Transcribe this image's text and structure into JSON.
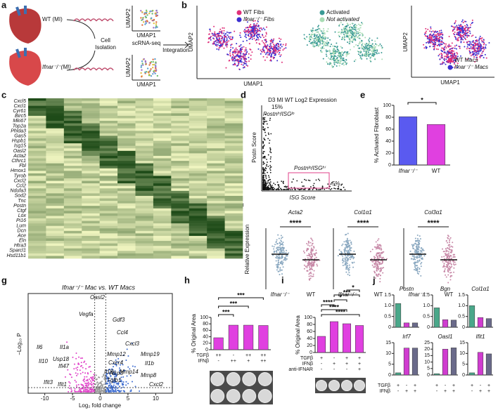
{
  "letters": [
    "a",
    "b",
    "c",
    "d",
    "e",
    "f",
    "g",
    "h",
    "i",
    "j"
  ],
  "schematic": {
    "wt": "WT (MI)",
    "ko": "Ifnar⁻/⁻(MI)",
    "isolation": [
      "Cell",
      "Isolation"
    ],
    "scrna": "scRNA-seq",
    "integration": "Integration",
    "umap1": "UMAP1",
    "umap2": "UMAP2"
  },
  "umap": {
    "x": "UMAP1",
    "y": "UMAP2",
    "fibs_legend": [
      {
        "name": "WT Fibs",
        "color": "#e0307a"
      },
      {
        "name": "Ifnar⁻/⁻ Fibs",
        "color": "#3a2fd0"
      }
    ],
    "act_legend": [
      {
        "name": "Activated",
        "color": "#3a9a95"
      },
      {
        "name": "Not activated",
        "color": "#a8dcb4"
      }
    ],
    "macs_legend": [
      {
        "name": "WT Macs",
        "color": "#e0307a"
      },
      {
        "name": "Ifnar⁻/⁻ Macs",
        "color": "#3a2fd0"
      }
    ]
  },
  "heatmap": {
    "genes": [
      "Cxcl5",
      "Cxcl1",
      "Cyr61",
      "Birc5",
      "Mki67",
      "Top2a",
      "Phlda3",
      "Gas5",
      "Hspb1",
      "Isg15",
      "Oasl2",
      "Acta2",
      "Cthrc1",
      "Fbl",
      "Hmox1",
      "Tyrob",
      "Cxcl2",
      "Ccl2",
      "Ndufa3",
      "Sod2",
      "Tnc",
      "Postn",
      "Ctgf",
      "Lox",
      "Pi16",
      "Lum",
      "Dcn",
      "Ace",
      "Eln",
      "Htra3",
      "Sparcl1",
      "Hsd11b1"
    ]
  },
  "scatter_d": {
    "title": "D3 MI WT Log2 Expression",
    "xlabel": "ISG Score",
    "ylabel": "Postn Score",
    "pct_hi": "15%",
    "pct_lo": "5%",
    "label_hi": "Postnʰⁱ/ISGˡᵒ",
    "label_lo": "Postnˡᵒ/ISGʰⁱ"
  },
  "swarm_f": {
    "ylabel": "Relative Expression",
    "genes": [
      "Acta2",
      "Col1α1",
      "Col3α1"
    ],
    "categories": [
      "Ifnar⁻/⁻",
      "WT"
    ],
    "sig": "****"
  },
  "volcano_g": {
    "title": "Ifnar⁻/⁻ Mac vs. WT Macs",
    "xlabel": "Log₂ fold change",
    "ylabel": "−Log₁₀ P",
    "xlim": [
      -13,
      13
    ],
    "xticks": [
      -10,
      -5,
      0,
      5,
      10
    ],
    "genes": [
      "Vegfa",
      "Oasl2",
      "Il6",
      "Il1a",
      "Il10",
      "Usp18",
      "Ifi47",
      "Ifit3",
      "Ifit1",
      "Gdf3",
      "Ccl4",
      "Cxcl3",
      "Mmp12",
      "Cxcr4",
      "Il18",
      "Nlrp3",
      "Mmp14",
      "Tgfb1",
      "Mmp19",
      "Il1b",
      "Mmp8",
      "Cxcl2"
    ]
  },
  "chart_data": [
    {
      "type": "bar",
      "categories": [
        "Ifnar⁻/⁻",
        "WT"
      ],
      "values": [
        81,
        68
      ],
      "colors": [
        "#5a5af0",
        "#e040e0"
      ],
      "ylim": [
        0,
        100
      ],
      "yticks": [
        0,
        20,
        40,
        60,
        80,
        100
      ],
      "ylabel": "% Activated Fibroblast",
      "annotations": [
        "*"
      ]
    },
    {
      "type": "bar",
      "values": [
        37,
        76,
        76,
        75
      ],
      "color": "#e040e0",
      "ylim": [
        0,
        100
      ],
      "yticks": [
        0,
        20,
        40,
        60,
        80,
        100
      ],
      "ylabel": "% Original Area",
      "annotations": [
        "***",
        "***",
        "***"
      ],
      "treatments": [
        {
          "name": "TGFβ",
          "levels": [
            "++",
            "-",
            "++",
            "++"
          ]
        },
        {
          "name": "IFNβ",
          "levels": [
            "-",
            "++",
            "+",
            "++"
          ]
        }
      ]
    },
    {
      "type": "bar",
      "values": [
        46,
        88,
        82,
        77
      ],
      "color": "#e040e0",
      "ylim": [
        0,
        100
      ],
      "yticks": [
        0,
        20,
        40,
        60,
        80,
        100
      ],
      "ylabel": "% Original Area",
      "annotations": [
        "****",
        "****",
        "****",
        "*",
        "***",
        "*"
      ],
      "treatments": [
        {
          "name": "TGFβ",
          "levels": [
            "+",
            "-",
            "+",
            "+"
          ]
        },
        {
          "name": "IFNβ",
          "levels": [
            "-",
            "+",
            "+",
            "+"
          ]
        },
        {
          "name": "anti-IFNAR",
          "levels": [
            "-",
            "-",
            "-",
            "+"
          ]
        }
      ]
    },
    {
      "type": "bar",
      "title": "Postn",
      "values": [
        1.1,
        0.2,
        0.2
      ],
      "colors": [
        "#4aa88a",
        "#d03cd0",
        "#6a6a8a"
      ],
      "ylim": [
        0,
        1.5
      ],
      "yticks": [
        0,
        0.5,
        {
          "value": 1,
          "label": "1.0"
        },
        1.5
      ]
    },
    {
      "type": "bar",
      "title": "Bgn",
      "values": [
        0.9,
        0.35,
        0.33
      ],
      "colors": [
        "#4aa88a",
        "#d03cd0",
        "#6a6a8a"
      ],
      "ylim": [
        0,
        1.5
      ],
      "yticks": [
        0,
        0.5,
        {
          "value": 1,
          "label": "1.0"
        },
        1.5
      ]
    },
    {
      "type": "bar",
      "title": "Col1α1",
      "values": [
        1,
        0.45,
        0.4
      ],
      "colors": [
        "#4aa88a",
        "#d03cd0",
        "#6a6a8a"
      ],
      "ylim": [
        0,
        1.5
      ],
      "yticks": [
        0,
        0.5,
        {
          "value": 1,
          "label": "1.0"
        },
        1.5
      ]
    },
    {
      "type": "bar",
      "title": "Irf7",
      "values": [
        1,
        12.5,
        12.5
      ],
      "colors": [
        "#4aa88a",
        "#d03cd0",
        "#6a6a8a"
      ],
      "ylim": [
        0,
        15
      ],
      "yticks": [
        0,
        5,
        10,
        15
      ]
    },
    {
      "type": "bar",
      "title": "Oasl1",
      "values": [
        1,
        20,
        21
      ],
      "colors": [
        "#4aa88a",
        "#d03cd0",
        "#6a6a8a"
      ],
      "ylim": [
        0,
        25
      ],
      "yticks": [
        0,
        5,
        10,
        15,
        20,
        25
      ]
    },
    {
      "type": "bar",
      "title": "Ifit1",
      "values": [
        1,
        10.5,
        9.8
      ],
      "colors": [
        "#4aa88a",
        "#d03cd0",
        "#6a6a8a"
      ],
      "ylim": [
        0,
        15
      ],
      "yticks": [
        0,
        5,
        10,
        15
      ]
    }
  ],
  "j_treatments": [
    {
      "name": "TGFβ",
      "levels": [
        "+",
        "-",
        "+"
      ]
    },
    {
      "name": "IFNβ",
      "levels": [
        "-",
        "+",
        "+"
      ]
    }
  ]
}
